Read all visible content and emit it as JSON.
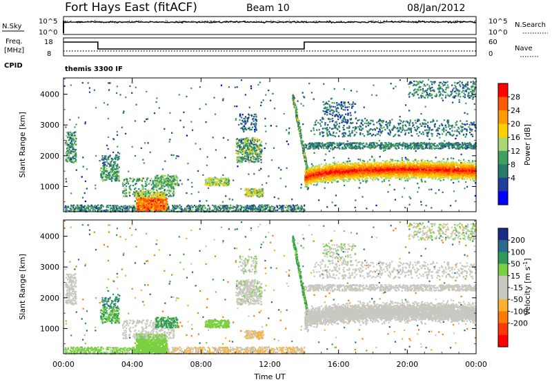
{
  "header": {
    "station": "Fort Hays East (fitACF)",
    "beam": "Beam 10",
    "date": "08/Jan/2012"
  },
  "noise_panel": {
    "left_label": "N.Sky",
    "right_label": "N.Search",
    "left_ticks": [
      "10^5",
      "10^0"
    ],
    "right_ticks": [
      "10^5",
      "10^0"
    ]
  },
  "freq_panel": {
    "left_label_1": "Freq.",
    "left_label_2": "[MHz]",
    "right_label": "Nave",
    "left_ticks": [
      "18",
      "8"
    ],
    "right_ticks": [
      "60",
      "0"
    ],
    "cpid_label": "CPID",
    "cpid_value": "themis 3300 IF"
  },
  "chart_data": [
    {
      "type": "heatmap",
      "name": "power",
      "ylabel": "Slant Range [km]",
      "yticks": [
        "4000",
        "3000",
        "2000",
        "1000"
      ],
      "colorbar_label": "Power [dB]",
      "colorbar_ticks": [
        "28",
        "24",
        "20",
        "16",
        "12",
        "8",
        "4"
      ],
      "colorbar_colors": [
        "#ff0000",
        "#ff5a00",
        "#ff9a00",
        "#ffcf00",
        "#a8d870",
        "#3fa060",
        "#2a7a6a",
        "#1f3fa0",
        "#0000ff"
      ],
      "colorbar_range": [
        0,
        32
      ],
      "yrange": [
        180,
        4530
      ],
      "xrange_hours": [
        0,
        24
      ]
    },
    {
      "type": "heatmap",
      "name": "velocity",
      "ylabel": "Slant Range [km]",
      "yticks": [
        "4000",
        "3000",
        "2000",
        "1000"
      ],
      "colorbar_label": "Velocity [m s",
      "colorbar_label_sup": "-1",
      "colorbar_label_end": "]",
      "colorbar_ticks": [
        "200",
        "100",
        "50",
        "15",
        "-15",
        "-50",
        "-100",
        "-200"
      ],
      "colorbar_colors": [
        "#1a2a8a",
        "#2a6a8a",
        "#2f9a5a",
        "#7ad040",
        "#c8c8c0",
        "#c8c8c0",
        "#ffb030",
        "#ff7a00",
        "#ff3a00",
        "#ff0000"
      ],
      "yrange": [
        180,
        4530
      ],
      "xrange_hours": [
        0,
        24
      ]
    }
  ],
  "time_axis": {
    "ticks": [
      "00:00",
      "04:00",
      "08:00",
      "12:00",
      "16:00",
      "20:00",
      "00:00"
    ],
    "xlabel": "Time UT"
  }
}
